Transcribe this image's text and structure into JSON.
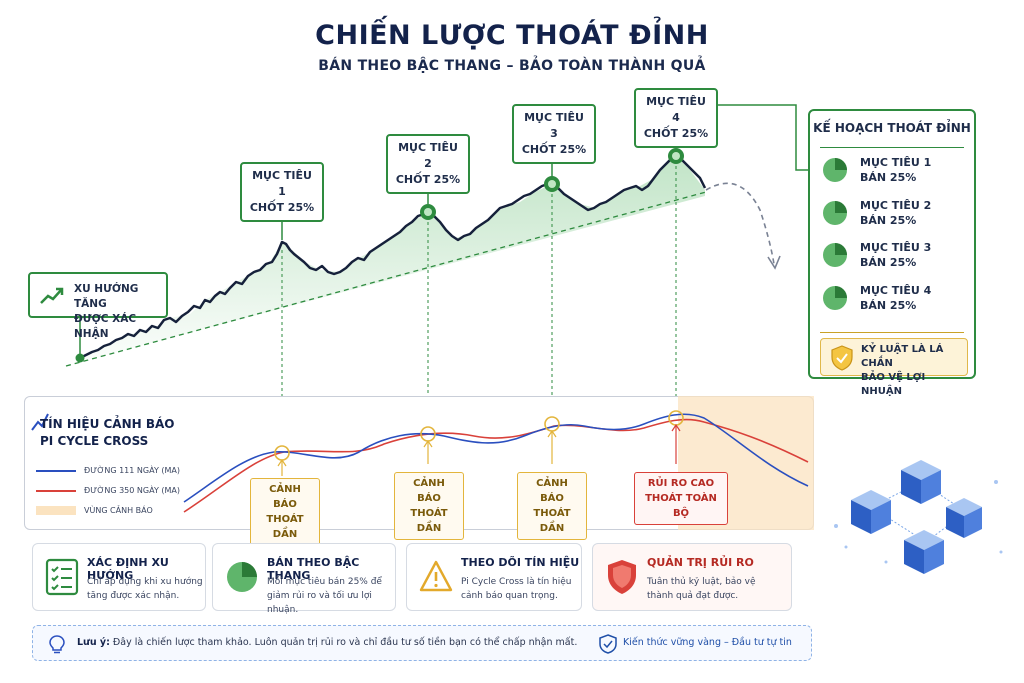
{
  "header": {
    "title": "CHIẾN LƯỢC THOÁT ĐỈNH",
    "subtitle": "BÁN THEO BẬC THANG – BẢO TOÀN THÀNH QUẢ"
  },
  "trend_confirm": {
    "line1": "XU HƯỚNG TĂNG",
    "line2": "ĐƯỢC XÁC NHẬN",
    "icon": "trend-up-icon"
  },
  "targets": [
    {
      "line1": "MỤC TIÊU 1",
      "line2": "CHỐT 25%"
    },
    {
      "line1": "MỤC TIÊU 2",
      "line2": "CHỐT 25%"
    },
    {
      "line1": "MỤC TIÊU 3",
      "line2": "CHỐT 25%"
    },
    {
      "line1": "MỤC TIÊU 4",
      "line2": "CHỐT 25%"
    }
  ],
  "plan": {
    "title": "KẾ HOẠCH THOÁT ĐỈNH",
    "items": [
      {
        "line1": "MỤC TIÊU 1",
        "line2": "BÁN 25%"
      },
      {
        "line1": "MỤC TIÊU 2",
        "line2": "BÁN 25%"
      },
      {
        "line1": "MỤC TIÊU 3",
        "line2": "BÁN 25%"
      },
      {
        "line1": "MỤC TIÊU 4",
        "line2": "BÁN 25%"
      }
    ],
    "discipline": {
      "line1": "KỶ LUẬT LÀ LÁ CHẮN",
      "line2": "BẢO VỆ LỢI NHUẬN"
    }
  },
  "signal": {
    "title_line1": "TÍN HIỆU CẢNH BÁO",
    "title_line2": "PI CYCLE CROSS",
    "legend": [
      {
        "label": "ĐƯỜNG 111 NGÀY (MA)",
        "color": "#2a4fbf"
      },
      {
        "label": "ĐƯỜNG 350 NGÀY (MA)",
        "color": "#d9413a"
      },
      {
        "label": "VÙNG CẢNH BÁO",
        "color": "#fbe3c0"
      }
    ],
    "warnings": [
      {
        "line1": "CẢNH BÁO",
        "line2": "THOÁT DẦN",
        "level": "warn"
      },
      {
        "line1": "CẢNH BÁO",
        "line2": "THOÁT DẦN",
        "level": "warn"
      },
      {
        "line1": "CẢNH BÁO",
        "line2": "THOÁT DẦN",
        "level": "warn"
      },
      {
        "line1": "RỦI RO CAO",
        "line2": "THOÁT TOÀN BỘ",
        "level": "danger"
      }
    ]
  },
  "cards": [
    {
      "title": "XÁC ĐỊNH XU HƯỚNG",
      "desc": "Chỉ áp dụng khi xu hướng tăng được xác nhận.",
      "icon": "checklist-icon",
      "color": "#2e8b3f"
    },
    {
      "title": "BÁN THEO BẬC THANG",
      "desc": "Mỗi mục tiêu bán 25% để giảm rủi ro và tối ưu lợi nhuận.",
      "icon": "pie-chart-icon",
      "color": "#2e8b3f"
    },
    {
      "title": "THEO DÕI TÍN HIỆU",
      "desc": "Pi Cycle Cross là tín hiệu cảnh báo quan trọng.",
      "icon": "warning-icon",
      "color": "#e3a92b"
    },
    {
      "title": "QUẢN TRỊ RỦI RO",
      "desc": "Tuân thủ kỷ luật, bảo vệ thành quả đạt được.",
      "icon": "shield-icon",
      "color": "#d9413a"
    }
  ],
  "footer": {
    "note_label": "Lưu ý:",
    "note_text": "Đây là chiến lược tham khảo. Luôn quản trị rủi ro và chỉ đầu tư số tiền bạn có thể chấp nhận mất.",
    "tagline": "Kiến thức vững vàng – Đầu tư tự tin"
  }
}
